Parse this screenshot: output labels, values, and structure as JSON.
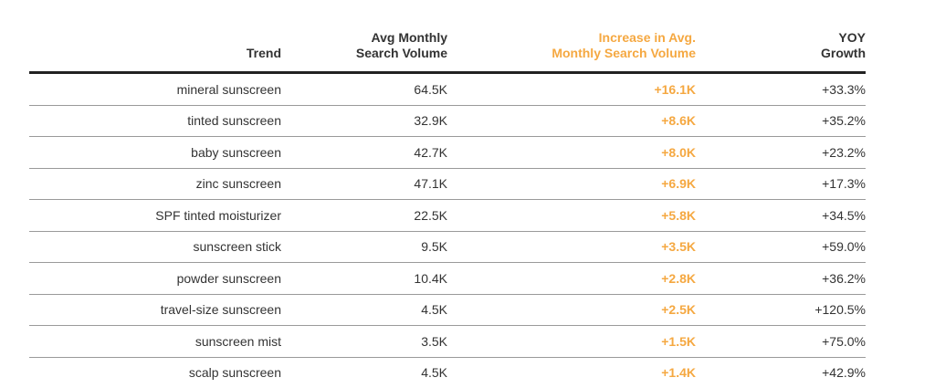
{
  "colors": {
    "accent": "#f5a841",
    "text": "#333333",
    "header_rule": "#222222",
    "row_rule": "#9a9a9a"
  },
  "chart_data": {
    "type": "table",
    "columns": [
      {
        "lines": [
          "Trend"
        ]
      },
      {
        "lines": [
          "Avg Monthly",
          "Search Volume"
        ]
      },
      {
        "lines": [
          "Increase in Avg.",
          "Monthly Search Volume"
        ],
        "highlight": true
      },
      {
        "lines": [
          "YOY",
          "Growth"
        ]
      }
    ],
    "rows": [
      [
        "mineral sunscreen",
        "64.5K",
        "+16.1K",
        "+33.3%"
      ],
      [
        "tinted sunscreen",
        "32.9K",
        "+8.6K",
        "+35.2%"
      ],
      [
        "baby sunscreen",
        "42.7K",
        "+8.0K",
        "+23.2%"
      ],
      [
        "zinc sunscreen",
        "47.1K",
        "+6.9K",
        "+17.3%"
      ],
      [
        "SPF tinted moisturizer",
        "22.5K",
        "+5.8K",
        "+34.5%"
      ],
      [
        "sunscreen stick",
        "9.5K",
        "+3.5K",
        "+59.0%"
      ],
      [
        "powder sunscreen",
        "10.4K",
        "+2.8K",
        "+36.2%"
      ],
      [
        "travel-size sunscreen",
        "4.5K",
        "+2.5K",
        "+120.5%"
      ],
      [
        "sunscreen mist",
        "3.5K",
        "+1.5K",
        "+75.0%"
      ],
      [
        "scalp sunscreen",
        "4.5K",
        "+1.4K",
        "+42.9%"
      ]
    ]
  }
}
